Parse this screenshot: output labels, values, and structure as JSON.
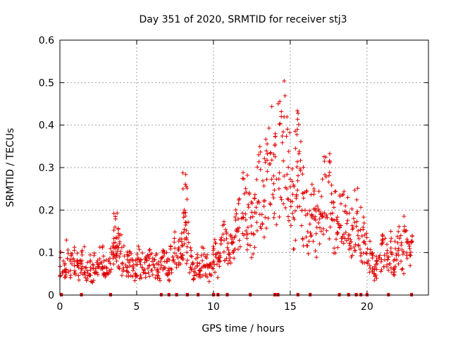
{
  "chart_data": {
    "type": "scatter",
    "title": "Day 351 of 2020, SRMTID for receiver stj3",
    "xlabel": "GPS time / hours",
    "ylabel": "SRMTID / TECUs",
    "xlim": [
      0,
      24
    ],
    "ylim": [
      0,
      0.6
    ],
    "xticks": [
      0,
      5,
      10,
      15,
      20
    ],
    "xtick_labels": [
      "0",
      "5",
      "10",
      "15",
      "20"
    ],
    "yticks": [
      0,
      0.1,
      0.2,
      0.3,
      0.4,
      0.5,
      0.6
    ],
    "ytick_labels": [
      "0",
      "0.1",
      "0.2",
      "0.3",
      "0.4",
      "0.5",
      "0.6"
    ],
    "grid": true,
    "marker": "+",
    "color": "#e00000",
    "gap_marker_color": "#e00000",
    "series": [
      {
        "name": "SRMTID",
        "x": [
          0.1,
          0.3,
          0.5,
          0.7,
          0.9,
          1.1,
          1.3,
          1.5,
          1.7,
          1.9,
          2.1,
          2.3,
          2.5,
          2.7,
          2.9,
          3.1,
          3.3,
          3.5,
          3.6,
          3.7,
          3.8,
          3.9,
          4.1,
          4.3,
          4.5,
          4.7,
          4.9,
          5.1,
          5.3,
          5.5,
          5.7,
          5.9,
          6.1,
          6.3,
          6.5,
          6.7,
          6.9,
          7.1,
          7.3,
          7.5,
          7.7,
          7.9,
          8.0,
          8.1,
          8.2,
          8.3,
          8.5,
          8.7,
          8.9,
          9.1,
          9.3,
          9.5,
          9.7,
          9.9,
          10.1,
          10.3,
          10.5,
          10.7,
          10.9,
          11.1,
          11.3,
          11.5,
          11.7,
          11.9,
          12.1,
          12.3,
          12.5,
          12.7,
          12.9,
          13.1,
          13.3,
          13.5,
          13.7,
          13.9,
          14.1,
          14.3,
          14.5,
          14.7,
          14.9,
          15.1,
          15.3,
          15.4,
          15.5,
          15.7,
          15.9,
          16.1,
          16.3,
          16.5,
          16.7,
          16.9,
          17.1,
          17.3,
          17.5,
          17.7,
          17.9,
          18.1,
          18.3,
          18.5,
          18.7,
          18.9,
          19.1,
          19.3,
          19.5,
          19.7,
          19.9,
          20.1,
          20.3,
          20.5,
          20.7,
          20.9,
          21.1,
          21.3,
          21.5,
          21.7,
          21.9,
          22.1,
          22.3,
          22.5,
          22.7,
          22.9
        ],
        "y": [
          0.07,
          0.06,
          0.09,
          0.07,
          0.08,
          0.07,
          0.06,
          0.08,
          0.06,
          0.07,
          0.05,
          0.07,
          0.06,
          0.08,
          0.07,
          0.06,
          0.09,
          0.12,
          0.15,
          0.14,
          0.11,
          0.1,
          0.08,
          0.07,
          0.08,
          0.07,
          0.06,
          0.08,
          0.07,
          0.06,
          0.07,
          0.08,
          0.06,
          0.07,
          0.06,
          0.08,
          0.07,
          0.06,
          0.08,
          0.11,
          0.09,
          0.1,
          0.14,
          0.22,
          0.18,
          0.12,
          0.08,
          0.06,
          0.07,
          0.06,
          0.08,
          0.07,
          0.05,
          0.08,
          0.09,
          0.07,
          0.1,
          0.12,
          0.11,
          0.1,
          0.12,
          0.14,
          0.17,
          0.2,
          0.18,
          0.21,
          0.16,
          0.19,
          0.23,
          0.26,
          0.24,
          0.28,
          0.31,
          0.25,
          0.29,
          0.33,
          0.3,
          0.35,
          0.28,
          0.22,
          0.18,
          0.3,
          0.34,
          0.26,
          0.21,
          0.17,
          0.19,
          0.22,
          0.16,
          0.18,
          0.2,
          0.25,
          0.23,
          0.19,
          0.17,
          0.15,
          0.18,
          0.21,
          0.16,
          0.14,
          0.17,
          0.19,
          0.15,
          0.13,
          0.12,
          0.09,
          0.08,
          0.06,
          0.07,
          0.1,
          0.12,
          0.09,
          0.11,
          0.08,
          0.1,
          0.12,
          0.09,
          0.13,
          0.11,
          0.1
        ]
      }
    ],
    "gap_markers_x": [
      0.1,
      1.4,
      3.3,
      6.6,
      7.1,
      7.6,
      8.3,
      9.0,
      10.0,
      10.3,
      10.9,
      12.4,
      14.0,
      14.2,
      15.5,
      16.3,
      18.2,
      18.8,
      19.3,
      19.6,
      20.0,
      21.4,
      22.9
    ]
  }
}
